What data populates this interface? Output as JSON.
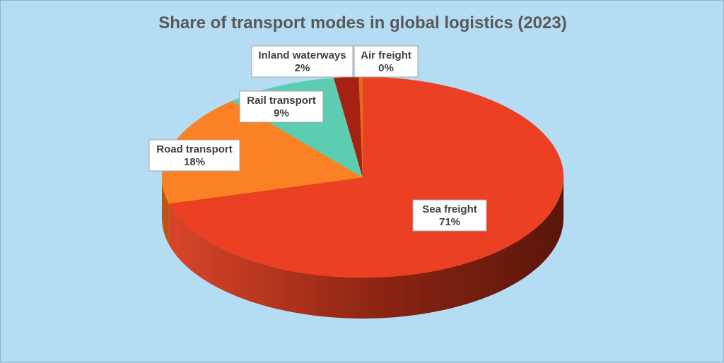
{
  "chart_data": {
    "type": "pie",
    "title": "Share of transport modes in global logistics (2023)",
    "slices": [
      {
        "label": "Sea freight",
        "value": 71,
        "value_label": "71%",
        "color": "#ec4024",
        "side_color": "#8a2412"
      },
      {
        "label": "Road transport",
        "value": 18,
        "value_label": "18%",
        "color": "#fb8224",
        "side_color": "#b8560f"
      },
      {
        "label": "Rail transport",
        "value": 9,
        "value_label": "9%",
        "color": "#5ccdb0",
        "side_color": "#3a8c77"
      },
      {
        "label": "Inland waterways",
        "value": 2,
        "value_label": "2%",
        "color": "#a52212",
        "side_color": "#5e120a"
      },
      {
        "label": "Air freight",
        "value": 0.3,
        "value_label": "0%",
        "color": "#e86a1c",
        "side_color": "#9a4410"
      }
    ],
    "style": "3d",
    "legend": "none",
    "background": "#b4dcf2"
  }
}
